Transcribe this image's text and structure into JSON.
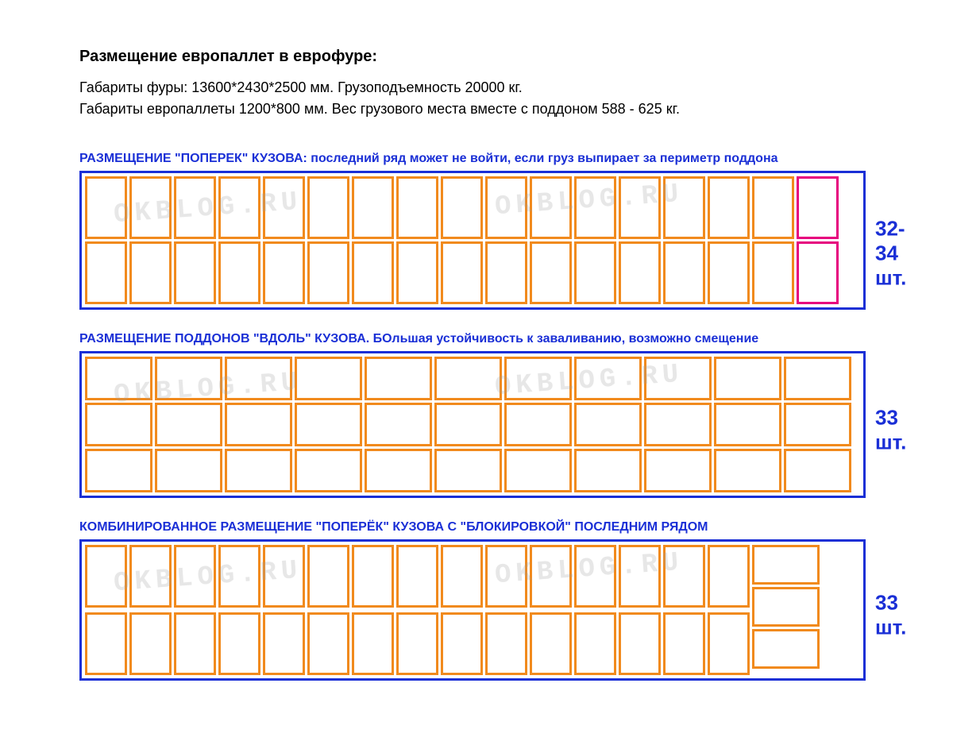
{
  "title": "Размещение европаллет в еврофуре:",
  "line1": "Габариты фуры: 13600*2430*2500 мм. Грузоподъемность 20000 кг.",
  "line2": "Габариты европаллеты 1200*800 мм. Вес грузового места вместе с поддоном 588 - 625 кг.",
  "watermark_text": "OKBLOG.RU",
  "colors": {
    "truck_border": "#1a2fd6",
    "pallet_border": "#f18a1d",
    "highlight_border": "#e6007e",
    "label_color": "#1a2fd6",
    "text_color": "#000000"
  },
  "layouts": [
    {
      "id": "across",
      "label": "РАЗМЕЩЕНИЕ \"ПОПЕРЕК\" КУЗОВА: последний ряд может не войти, если груз выпирает за периметр поддона",
      "count_text": "32-34 шт.",
      "truck_width": 990,
      "rows": 2,
      "cols": 17,
      "pallet_w": 53,
      "pallet_h": 79,
      "highlight_last_col": true
    },
    {
      "id": "along",
      "label": "РАЗМЕЩЕНИЕ ПОДДОНОВ \"ВДОЛЬ\" КУЗОВА. БОльшая устойчивость к заваливанию, возможно смещение",
      "count_text": "33 шт.",
      "truck_width": 990,
      "rows": 3,
      "cols": 11,
      "pallet_w": 85,
      "pallet_h": 55,
      "highlight_last_col": false
    },
    {
      "id": "combined",
      "label": "КОМБИНИРОВАННОЕ РАЗМЕЩЕНИЕ \"ПОПЕРЁК\" КУЗОВА С \"БЛОКИРОВКОЙ\" ПОСЛЕДНИМ РЯДОМ",
      "count_text": "33 шт.",
      "truck_width": 990,
      "left_rows": 2,
      "left_cols": 15,
      "left_pallet_w": 53,
      "left_pallet_h": 79,
      "right_rows": 3,
      "right_pallet_w": 85,
      "right_pallet_h": 50
    }
  ]
}
